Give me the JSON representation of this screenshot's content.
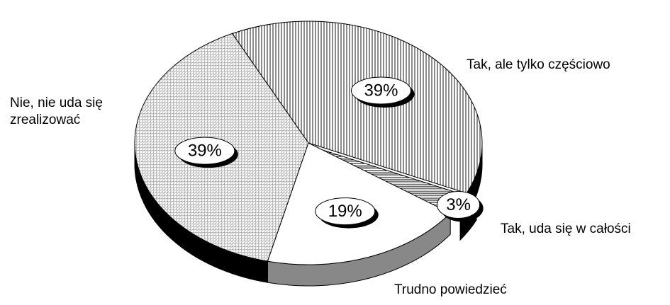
{
  "chart_data": {
    "type": "pie",
    "categories": [
      "Tak, ale tylko częściowo",
      "Tak, uda się w całości",
      "Trudno powiedzieć",
      "Nie, nie uda się zrealizować"
    ],
    "values": [
      39,
      3,
      19,
      39
    ],
    "value_labels": [
      "39%",
      "3%",
      "19%",
      "39%"
    ]
  }
}
